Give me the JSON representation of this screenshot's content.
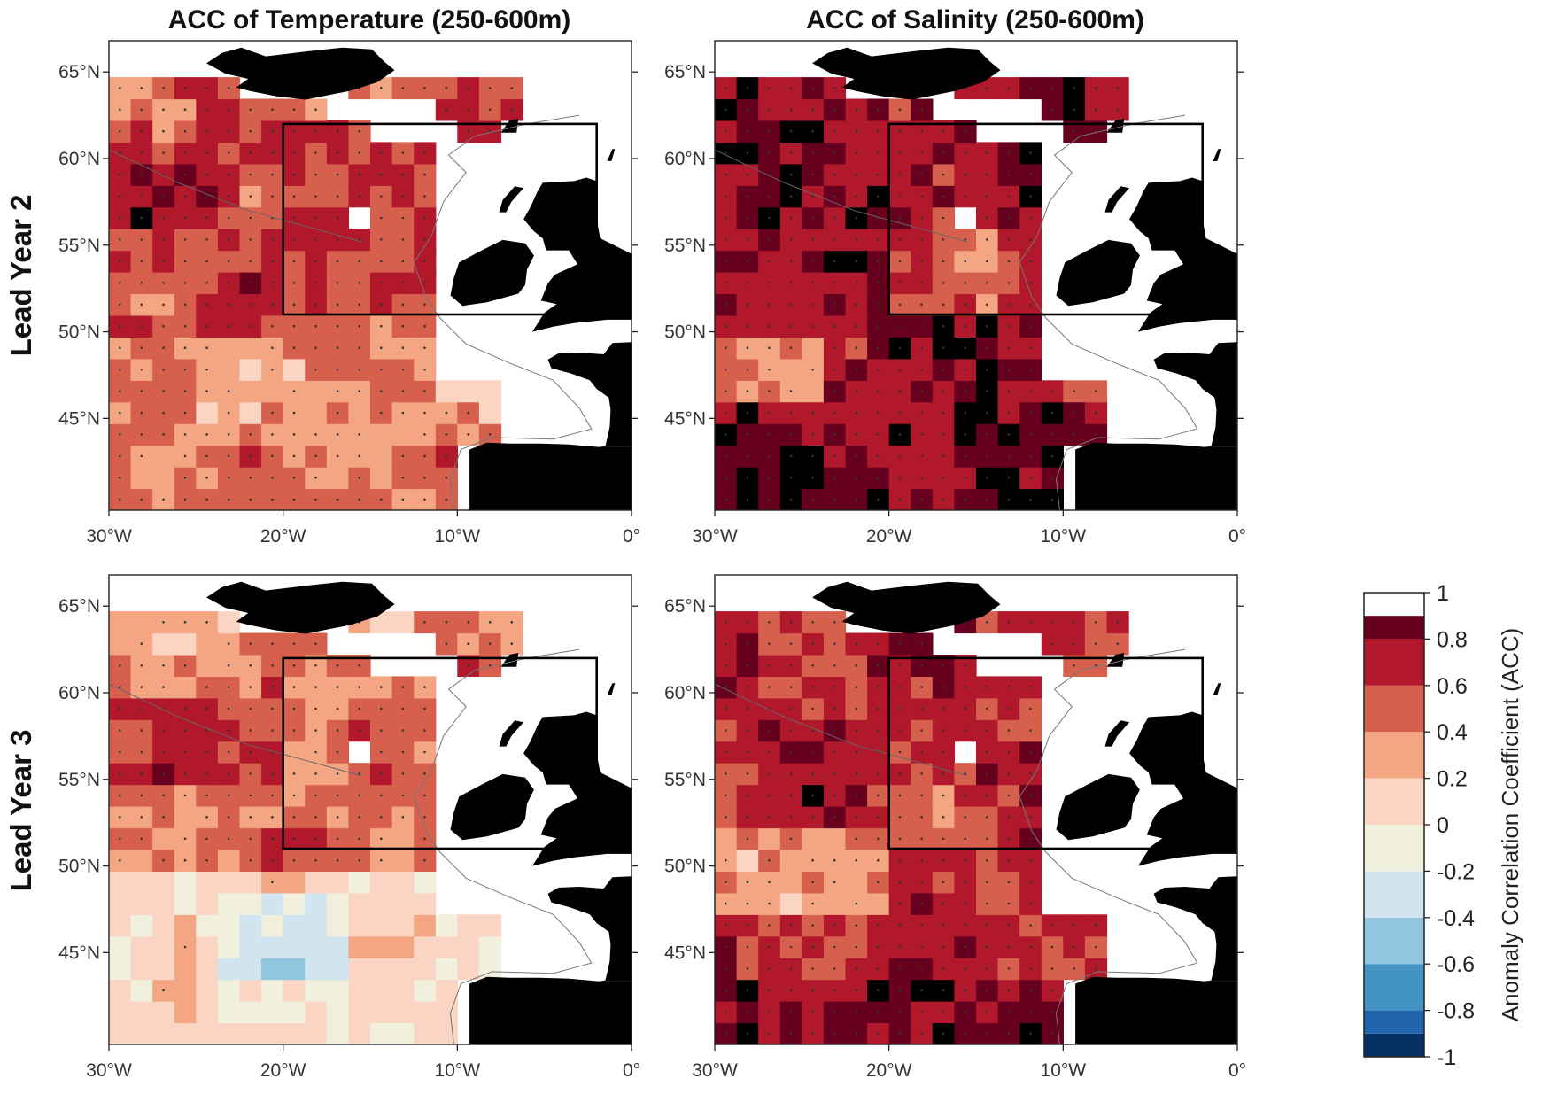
{
  "figure": {
    "column_titles": [
      "ACC of Temperature (250-600m)",
      "ACC of Salinity (250-600m)"
    ],
    "row_labels": [
      "Lead Year 2",
      "Lead Year 3"
    ],
    "panels": [
      {
        "variable": "Temperature",
        "lead_year": 2
      },
      {
        "variable": "Salinity",
        "lead_year": 2
      },
      {
        "variable": "Temperature",
        "lead_year": 3
      },
      {
        "variable": "Salinity",
        "lead_year": 3
      }
    ],
    "lat_ticks": [
      {
        "value": 65,
        "label": "65°N"
      },
      {
        "value": 60,
        "label": "60°N"
      },
      {
        "value": 55,
        "label": "55°N"
      },
      {
        "value": 50,
        "label": "50°N"
      },
      {
        "value": 45,
        "label": "45°N"
      }
    ],
    "lon_ticks": [
      {
        "value": -30,
        "label": "30°W"
      },
      {
        "value": -20,
        "label": "20°W"
      },
      {
        "value": -10,
        "label": "10°W"
      },
      {
        "value": 0,
        "label": "0°"
      }
    ],
    "extent": {
      "lon_min": -30,
      "lon_max": 0,
      "lat_min": 39.7,
      "lat_max": 66.8
    },
    "box": {
      "lon_min": -20,
      "lon_max": -2,
      "lat_min": 51,
      "lat_max": 62
    },
    "colorbar": {
      "title": "Anomaly Correlation Coefficient (ACC)",
      "tick_labels": [
        "1",
        "0.8",
        "0.6",
        "0.4",
        "0.2",
        "0",
        "-0.2",
        "-0.4",
        "-0.6",
        "-0.8",
        "-1"
      ],
      "tick_values": [
        1,
        0.8,
        0.6,
        0.4,
        0.2,
        0,
        -0.2,
        -0.4,
        -0.6,
        -0.8,
        -1
      ],
      "levels": [
        -1,
        -0.9,
        -0.8,
        -0.6,
        -0.4,
        -0.2,
        0,
        0.2,
        0.4,
        0.6,
        0.8,
        0.9,
        1
      ],
      "colors": [
        "#053061",
        "#2166ac",
        "#4393c3",
        "#92c5de",
        "#d1e5f0",
        "#f0f0dc",
        "#fbd5c4",
        "#f4a582",
        "#d6604d",
        "#b2182b",
        "#67001f"
      ]
    }
  },
  "chart_data": [
    {
      "type": "heatmap",
      "title": "ACC of Temperature (250-600m)",
      "row": "Lead Year 2",
      "typical_range": [
        0.2,
        0.8
      ],
      "box_region_range": [
        0.4,
        0.8
      ]
    },
    {
      "type": "heatmap",
      "title": "ACC of Salinity (250-600m)",
      "row": "Lead Year 2",
      "typical_range": [
        0.6,
        1.0
      ],
      "box_region_range": [
        0.4,
        0.9
      ]
    },
    {
      "type": "heatmap",
      "title": "ACC of Temperature (250-600m)",
      "row": "Lead Year 3",
      "typical_range": [
        -0.4,
        0.8
      ],
      "box_region_range": [
        0.2,
        0.6
      ]
    },
    {
      "type": "heatmap",
      "title": "ACC of Salinity (250-600m)",
      "row": "Lead Year 3",
      "typical_range": [
        0.2,
        0.9
      ],
      "box_region_range": [
        0.4,
        0.9
      ]
    }
  ]
}
